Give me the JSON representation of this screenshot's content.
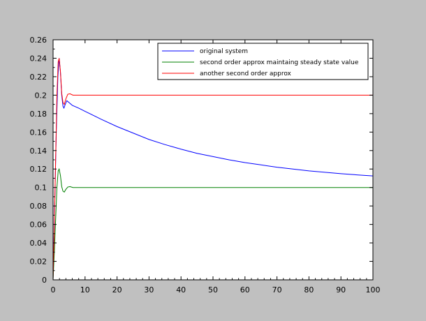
{
  "chart_data": {
    "type": "line",
    "title": "",
    "xlabel": "",
    "ylabel": "",
    "xlim": [
      0,
      100
    ],
    "ylim": [
      0,
      0.26
    ],
    "x_ticks": [
      0,
      10,
      20,
      30,
      40,
      50,
      60,
      70,
      80,
      90,
      100
    ],
    "y_ticks": [
      0,
      0.02,
      0.04,
      0.06,
      0.08,
      0.1,
      0.12,
      0.14,
      0.16,
      0.18,
      0.2,
      0.22,
      0.24,
      0.26
    ],
    "x_tick_labels": [
      "0",
      "10",
      "20",
      "30",
      "40",
      "50",
      "60",
      "70",
      "80",
      "90",
      "100"
    ],
    "y_tick_labels": [
      "0",
      "0.02",
      "0.04",
      "0.06",
      "0.08",
      "0.1",
      "0.12",
      "0.14",
      "0.16",
      "0.18",
      "0.2",
      "0.22",
      "0.24",
      "0.26"
    ],
    "grid": false,
    "legend_position": "top-right",
    "background": "#c0c0c0",
    "plot_background": "#ffffff",
    "series": [
      {
        "name": "original system",
        "color": "#0000ff",
        "points": [
          [
            0,
            0
          ],
          [
            0.5,
            0.08
          ],
          [
            1,
            0.16
          ],
          [
            1.5,
            0.22
          ],
          [
            1.9,
            0.24
          ],
          [
            2.3,
            0.225
          ],
          [
            2.7,
            0.2
          ],
          [
            3.1,
            0.188
          ],
          [
            3.4,
            0.186
          ],
          [
            3.8,
            0.19
          ],
          [
            4.3,
            0.194
          ],
          [
            5,
            0.192
          ],
          [
            6,
            0.189
          ],
          [
            8,
            0.186
          ],
          [
            10,
            0.1825
          ],
          [
            15,
            0.174
          ],
          [
            20,
            0.166
          ],
          [
            25,
            0.159
          ],
          [
            30,
            0.152
          ],
          [
            35,
            0.1465
          ],
          [
            40,
            0.1415
          ],
          [
            45,
            0.137
          ],
          [
            50,
            0.1335
          ],
          [
            55,
            0.13
          ],
          [
            60,
            0.127
          ],
          [
            65,
            0.1245
          ],
          [
            70,
            0.122
          ],
          [
            75,
            0.12
          ],
          [
            80,
            0.118
          ],
          [
            85,
            0.1165
          ],
          [
            90,
            0.115
          ],
          [
            95,
            0.1137
          ],
          [
            100,
            0.1125
          ]
        ]
      },
      {
        "name": "second order approx maintaing steady state value",
        "color": "#008000",
        "points": [
          [
            0,
            0
          ],
          [
            0.4,
            0.03
          ],
          [
            0.8,
            0.065
          ],
          [
            1.2,
            0.1
          ],
          [
            1.6,
            0.118
          ],
          [
            1.9,
            0.12
          ],
          [
            2.3,
            0.113
          ],
          [
            2.7,
            0.101
          ],
          [
            3.1,
            0.096
          ],
          [
            3.5,
            0.095
          ],
          [
            4,
            0.098
          ],
          [
            4.6,
            0.1005
          ],
          [
            5.3,
            0.101
          ],
          [
            6.2,
            0.1
          ],
          [
            8,
            0.1
          ],
          [
            20,
            0.1
          ],
          [
            40,
            0.1
          ],
          [
            60,
            0.1
          ],
          [
            80,
            0.1
          ],
          [
            100,
            0.1
          ]
        ]
      },
      {
        "name": "another second order approx",
        "color": "#ff0000",
        "points": [
          [
            0,
            0
          ],
          [
            0.4,
            0.06
          ],
          [
            0.8,
            0.13
          ],
          [
            1.2,
            0.2
          ],
          [
            1.6,
            0.236
          ],
          [
            1.9,
            0.24
          ],
          [
            2.3,
            0.226
          ],
          [
            2.7,
            0.202
          ],
          [
            3.1,
            0.192
          ],
          [
            3.5,
            0.19
          ],
          [
            4,
            0.196
          ],
          [
            4.6,
            0.201
          ],
          [
            5.3,
            0.2015
          ],
          [
            6.2,
            0.2
          ],
          [
            8,
            0.2
          ],
          [
            20,
            0.2
          ],
          [
            40,
            0.2
          ],
          [
            60,
            0.2
          ],
          [
            80,
            0.2
          ],
          [
            100,
            0.2
          ]
        ]
      }
    ]
  }
}
